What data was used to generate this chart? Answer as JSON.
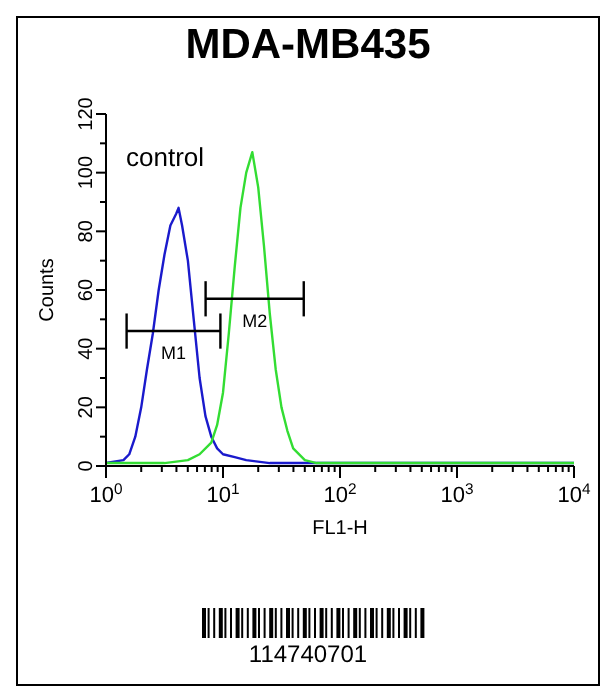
{
  "chart_data": {
    "type": "line",
    "title": "MDA-MB435",
    "xlabel": "FL1-H",
    "ylabel": "Counts",
    "log": "x",
    "xlim": [
      1,
      10000
    ],
    "ylim": [
      0,
      120
    ],
    "xticks": [
      {
        "value": 1,
        "label": "10$^{0}$"
      },
      {
        "value": 2,
        "label": null
      },
      {
        "value": 3,
        "label": null
      },
      {
        "value": 4,
        "label": null
      },
      {
        "value": 5,
        "label": null
      },
      {
        "value": 6,
        "label": null
      },
      {
        "value": 7,
        "label": null
      },
      {
        "value": 8,
        "label": null
      },
      {
        "value": 9,
        "label": null
      },
      {
        "value": 10,
        "label": "10$^{1}$"
      },
      {
        "value": 20,
        "label": null
      },
      {
        "value": 30,
        "label": null
      },
      {
        "value": 40,
        "label": null
      },
      {
        "value": 50,
        "label": null
      },
      {
        "value": 60,
        "label": null
      },
      {
        "value": 70,
        "label": null
      },
      {
        "value": 80,
        "label": null
      },
      {
        "value": 90,
        "label": null
      },
      {
        "value": 100,
        "label": "10$^{2}$"
      },
      {
        "value": 200,
        "label": null
      },
      {
        "value": 300,
        "label": null
      },
      {
        "value": 400,
        "label": null
      },
      {
        "value": 500,
        "label": null
      },
      {
        "value": 600,
        "label": null
      },
      {
        "value": 700,
        "label": null
      },
      {
        "value": 800,
        "label": null
      },
      {
        "value": 900,
        "label": null
      },
      {
        "value": 1000,
        "label": "10$^{3}$"
      },
      {
        "value": 2000,
        "label": null
      },
      {
        "value": 3000,
        "label": null
      },
      {
        "value": 4000,
        "label": null
      },
      {
        "value": 5000,
        "label": null
      },
      {
        "value": 6000,
        "label": null
      },
      {
        "value": 7000,
        "label": null
      },
      {
        "value": 8000,
        "label": null
      },
      {
        "value": 9000,
        "label": null
      },
      {
        "value": 10000,
        "label": "10$^{4}$"
      }
    ],
    "yticks": [
      0,
      {
        "value": 10,
        "label": null
      },
      20,
      {
        "value": 30,
        "label": null
      },
      40,
      {
        "value": 50,
        "label": null
      },
      60,
      {
        "value": 70,
        "label": null
      },
      80,
      {
        "value": 90,
        "label": null
      },
      100,
      {
        "value": 110,
        "label": null
      },
      120
    ],
    "marker": "none",
    "line_style": "solid",
    "series": [
      {
        "color": "#1a1acc",
        "x": [
          1,
          1.41,
          1.58,
          1.78,
          2.0,
          2.24,
          2.51,
          2.82,
          3.16,
          3.55,
          3.98,
          4.17,
          4.47,
          5.01,
          5.62,
          6.31,
          7.08,
          7.94,
          8.91,
          10,
          12.6,
          15.8,
          25.1,
          39.8,
          100,
          1000,
          10000
        ],
        "values": [
          1,
          2,
          4,
          10,
          20,
          33,
          45,
          60,
          72,
          82,
          86,
          88,
          82,
          70,
          50,
          30,
          17,
          10,
          6,
          4,
          3,
          2,
          1,
          1,
          1,
          1,
          1
        ]
      },
      {
        "color": "#33dd33",
        "x": [
          1,
          3.16,
          5.01,
          6.31,
          7.94,
          8.91,
          10,
          11.2,
          12.6,
          14.1,
          15.8,
          17.8,
          20,
          22.4,
          25.1,
          28.2,
          31.6,
          35.5,
          39.8,
          50.1,
          63.1,
          100,
          1000,
          10000
        ],
        "values": [
          1,
          1,
          2,
          4,
          8,
          14,
          25,
          45,
          68,
          88,
          100,
          107,
          95,
          75,
          52,
          33,
          20,
          12,
          6,
          2,
          1,
          1,
          1,
          1
        ]
      },
      {
        "name": "M1",
        "color": "#000000",
        "x": [
          1.5,
          9.5
        ],
        "values": [
          46,
          46
        ],
        "errors": [
          6,
          6
        ]
      },
      {
        "name": "M2",
        "color": "#000000",
        "x": [
          7.1,
          49
        ],
        "values": [
          57,
          57
        ],
        "errors": [
          6,
          6
        ]
      }
    ],
    "annotations": [
      "control",
      "114740701"
    ]
  }
}
